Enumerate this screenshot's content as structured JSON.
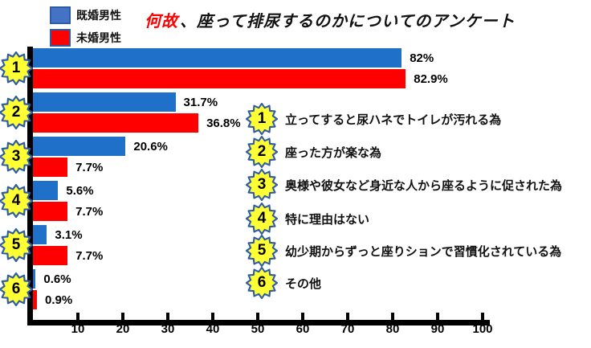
{
  "title": {
    "highlight": "何故",
    "rest": "、座って排尿するのかについてのアンケート"
  },
  "legend": [
    {
      "label": "既婚男性",
      "color": "#4472C4"
    },
    {
      "label": "未婚男性",
      "color": "#FF0000"
    }
  ],
  "chart_data": {
    "type": "bar",
    "orientation": "horizontal",
    "title": "何故、座って排尿するのかについてのアンケート",
    "categories": [
      "1",
      "2",
      "3",
      "4",
      "5",
      "6"
    ],
    "series": [
      {
        "name": "既婚男性",
        "color": "#1E70C8",
        "values": [
          82,
          31.7,
          20.6,
          5.6,
          3.1,
          0.6
        ],
        "labels": [
          "82%",
          "31.7%",
          "20.6%",
          "5.6%",
          "3.1%",
          "0.6%"
        ]
      },
      {
        "name": "未婚男性",
        "color": "#FF0000",
        "values": [
          82.9,
          36.8,
          7.7,
          7.7,
          7.7,
          0.9
        ],
        "labels": [
          "82.9%",
          "36.8%",
          "7.7%",
          "7.7%",
          "7.7%",
          "0.9%"
        ]
      }
    ],
    "x_ticks": [
      "10",
      "20",
      "30",
      "40",
      "50",
      "60",
      "70",
      "80",
      "90",
      "100"
    ],
    "xlim": [
      0,
      100
    ],
    "grid": false,
    "legend_position": "top-left"
  },
  "reasons": [
    {
      "num": "1",
      "text": "立ってすると尿ハネでトイレが汚れる為"
    },
    {
      "num": "2",
      "text": "座った方が楽な為"
    },
    {
      "num": "3",
      "text": "奥様や彼女など身近な人から座るように促された為"
    },
    {
      "num": "4",
      "text": "特に理由はない"
    },
    {
      "num": "5",
      "text": "幼少期からずっと座りションで習慣化されている為"
    },
    {
      "num": "6",
      "text": "その他"
    }
  ],
  "badge": {
    "fill": "#FFFF33",
    "stroke": "#2E5BA8"
  }
}
